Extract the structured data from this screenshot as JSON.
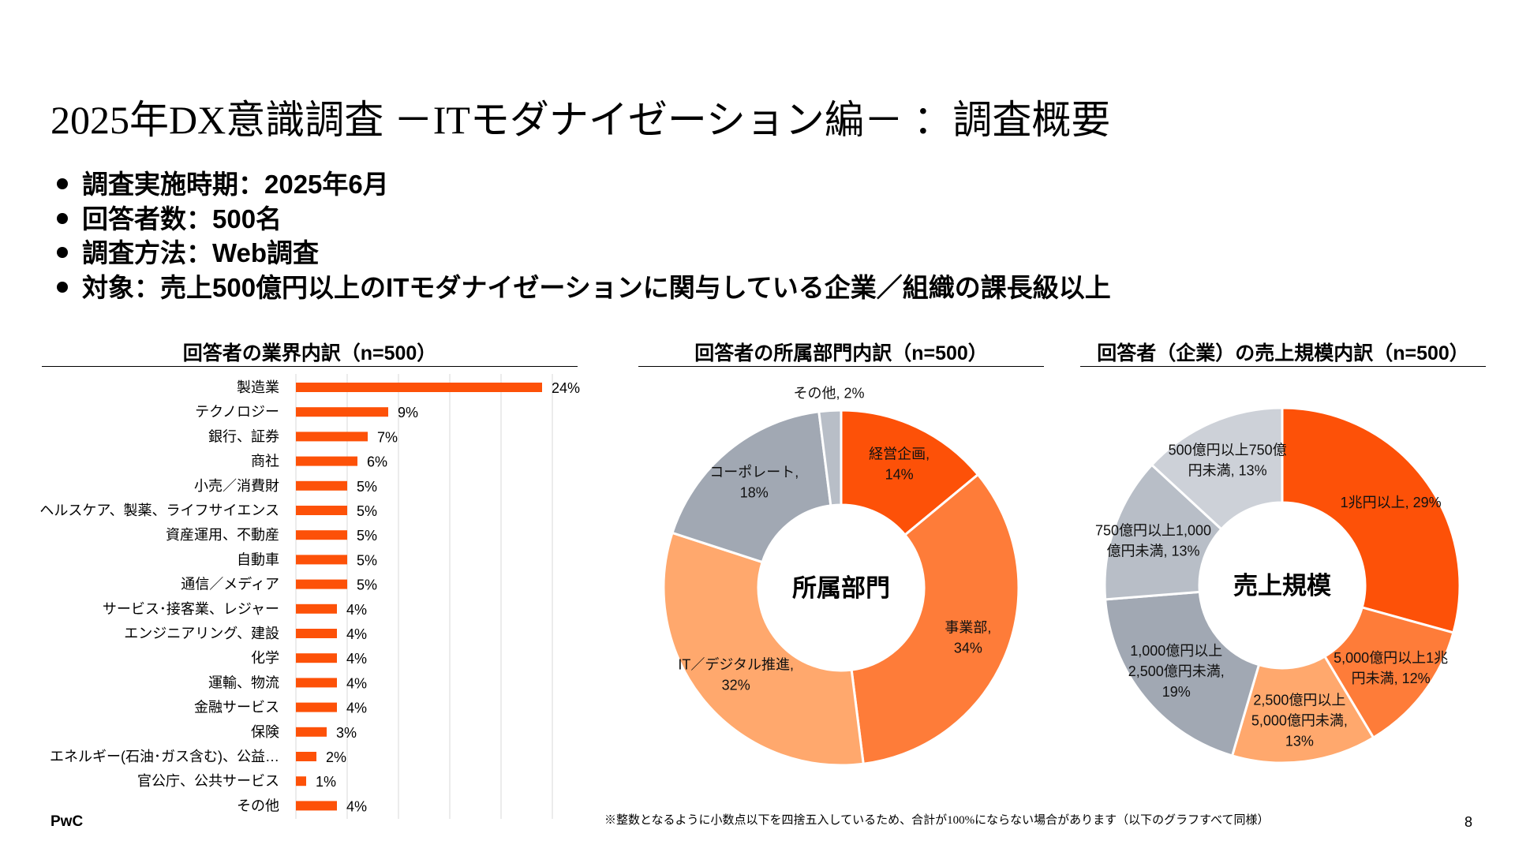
{
  "title": "2025年DX意識調査 －ITモダナイゼーション編－ ：調査概要",
  "bullets": [
    "調査実施時期：2025年6月",
    "回答者数：500名",
    "調査方法：Web調査",
    "対象：売上500億円以上のITモダナイゼーションに関与している企業／組織の課長級以上"
  ],
  "footnote": "※整数となるように小数点以下を四捨五入しているため、合計が100%にならない場合があります（以下のグラフすべて同様）",
  "page_number": "8",
  "logo": "PwC",
  "colors": {
    "accent": "#FD5108",
    "orange_mid": "#FE7C39",
    "orange_light": "#FFA86D",
    "gray_dark": "#A1A8B3",
    "gray_mid": "#B8BEC7",
    "gray_light": "#CDD1D8"
  },
  "chart_data": [
    {
      "type": "bar",
      "orientation": "horizontal",
      "title": "回答者の業界内訳（n=500）",
      "categories": [
        "製造業",
        "テクノロジー",
        "銀行、証券",
        "商社",
        "小売／消費財",
        "ヘルスケア、製薬、ライフサイエンス",
        "資産運用、不動産",
        "自動車",
        "通信／メディア",
        "サービス･接客業、レジャー",
        "エンジニアリング、建設",
        "化学",
        "運輸、物流",
        "金融サービス",
        "保険",
        "エネルギー(石油･ガス含む)、公益…",
        "官公庁、公共サービス",
        "その他"
      ],
      "values": [
        24,
        9,
        7,
        6,
        5,
        5,
        5,
        5,
        5,
        4,
        4,
        4,
        4,
        4,
        3,
        2,
        1,
        4
      ],
      "value_labels": [
        "24%",
        "9%",
        "7%",
        "6%",
        "5%",
        "5%",
        "5%",
        "5%",
        "5%",
        "4%",
        "4%",
        "4%",
        "4%",
        "4%",
        "3%",
        "2%",
        "1%",
        "4%"
      ],
      "xlim": [
        0,
        25
      ],
      "grid": true,
      "color": "#FD5108"
    },
    {
      "type": "pie",
      "donut": true,
      "title": "回答者の所属部門内訳（n=500）",
      "center_label": "所属部門",
      "slices": [
        {
          "label": "経営企画",
          "value": 14,
          "text": "経営企画,|14%",
          "color": "#FD5108"
        },
        {
          "label": "事業部",
          "value": 34,
          "text": "事業部,|34%",
          "color": "#FE7C39"
        },
        {
          "label": "IT／デジタル推進",
          "value": 32,
          "text": "IT／デジタル推進,|32%",
          "color": "#FFA86D"
        },
        {
          "label": "コーポレート",
          "value": 18,
          "text": "コーポレート,|18%",
          "color": "#A1A8B3"
        },
        {
          "label": "その他",
          "value": 2,
          "text": "その他, 2%",
          "color": "#B8BEC7"
        }
      ]
    },
    {
      "type": "pie",
      "donut": true,
      "title": "回答者（企業）の売上規模内訳（n=500）",
      "center_label": "売上規模",
      "slices": [
        {
          "label": "1兆円以上",
          "value": 29,
          "text": "1兆円以上, 29%",
          "color": "#FD5108"
        },
        {
          "label": "5,000億円以上1兆円未満",
          "value": 12,
          "text": "5,000億円以上1兆|円未満, 12%",
          "color": "#FE7C39"
        },
        {
          "label": "2,500億円以上5,000億円未満",
          "value": 13,
          "text": "2,500億円以上|5,000億円未満,|13%",
          "color": "#FFA86D"
        },
        {
          "label": "1,000億円以上2,500億円未満",
          "value": 19,
          "text": "1,000億円以上|2,500億円未満,|19%",
          "color": "#A1A8B3"
        },
        {
          "label": "750億円以上1,000億円未満",
          "value": 13,
          "text": "750億円以上1,000|億円未満, 13%",
          "color": "#B8BEC7"
        },
        {
          "label": "500億円以上750億円未満",
          "value": 13,
          "text": "500億円以上750億|円未満, 13%",
          "color": "#CDD1D8"
        }
      ]
    }
  ]
}
